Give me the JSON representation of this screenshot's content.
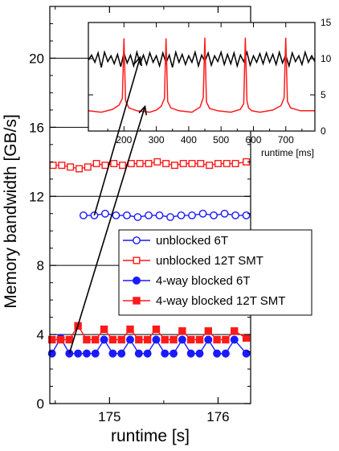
{
  "chart_data": [
    {
      "type": "line",
      "xlabel": "runtime [s]",
      "ylabel": "Memory bandwidth [GB/s]",
      "xlim": [
        174.45,
        176.3
      ],
      "ylim": [
        0,
        23
      ],
      "xticks": [
        "175",
        "176"
      ],
      "yticks": [
        "0",
        "4",
        "8",
        "12",
        "16",
        "20"
      ],
      "grid": "horizontal",
      "legend_position": "center-right",
      "colors": {
        "blocked_blue": "#1a1aff",
        "smt_red": "#ff1a1a"
      },
      "series": [
        {
          "name": "unblocked 6T",
          "marker": "open-circle",
          "x": [
            174.76,
            174.86,
            174.96,
            175.06,
            175.16,
            175.26,
            175.36,
            175.46,
            175.56,
            175.66,
            175.76,
            175.86,
            175.96,
            176.06,
            176.16,
            176.26
          ],
          "y": [
            10.9,
            10.9,
            11.0,
            10.9,
            10.9,
            10.8,
            10.9,
            10.9,
            10.8,
            10.9,
            10.9,
            11.0,
            10.9,
            11.0,
            10.9,
            10.9
          ]
        },
        {
          "name": "unblocked 12T SMT",
          "marker": "open-square",
          "x": [
            174.48,
            174.56,
            174.64,
            174.72,
            174.8,
            174.88,
            174.96,
            175.04,
            175.12,
            175.2,
            175.28,
            175.36,
            175.44,
            175.52,
            175.6,
            175.68,
            175.76,
            175.84,
            175.92,
            176.0,
            176.08,
            176.16,
            176.26
          ],
          "y": [
            13.8,
            13.8,
            13.7,
            13.6,
            13.7,
            13.9,
            13.8,
            13.9,
            13.8,
            13.9,
            13.9,
            13.9,
            14.0,
            13.9,
            13.8,
            13.9,
            13.9,
            13.9,
            13.8,
            13.9,
            13.9,
            13.9,
            14.0
          ]
        },
        {
          "name": "4-way blocked 6T",
          "marker": "filled-circle",
          "x": [
            174.47,
            174.55,
            174.63,
            174.71,
            174.79,
            174.87,
            174.95,
            175.03,
            175.11,
            175.19,
            175.27,
            175.35,
            175.43,
            175.51,
            175.59,
            175.67,
            175.75,
            175.83,
            175.91,
            175.99,
            176.07,
            176.15,
            176.26
          ],
          "y": [
            2.9,
            3.8,
            2.9,
            2.9,
            2.9,
            2.9,
            3.7,
            2.9,
            2.9,
            3.7,
            2.9,
            2.9,
            3.7,
            2.9,
            2.9,
            3.7,
            2.9,
            2.9,
            3.7,
            2.9,
            2.9,
            3.7,
            2.9
          ]
        },
        {
          "name": "4-way blocked 12T SMT",
          "marker": "filled-square",
          "x": [
            174.47,
            174.55,
            174.63,
            174.71,
            174.79,
            174.87,
            174.95,
            175.03,
            175.11,
            175.19,
            175.27,
            175.35,
            175.43,
            175.51,
            175.59,
            175.67,
            175.75,
            175.83,
            175.91,
            175.99,
            176.07,
            176.15,
            176.26
          ],
          "y": [
            3.7,
            3.7,
            3.7,
            4.5,
            3.7,
            3.7,
            4.3,
            3.7,
            3.7,
            4.3,
            3.7,
            3.7,
            4.3,
            3.7,
            3.7,
            4.2,
            3.7,
            3.7,
            4.2,
            3.7,
            3.7,
            4.2,
            3.8
          ]
        }
      ]
    },
    {
      "type": "line",
      "inset": true,
      "xlabel": "runtime [ms]",
      "ylabel": "",
      "xlim": [
        90,
        790
      ],
      "ylim": [
        0,
        15
      ],
      "xticks": [
        "200",
        "300",
        "400",
        "500",
        "600",
        "700"
      ],
      "yticks": [
        "0",
        "5",
        "10",
        "15"
      ],
      "series": [
        {
          "color": "#000000",
          "x": [
            90,
            100,
            110,
            120,
            130,
            140,
            150,
            160,
            170,
            180,
            190,
            200,
            210,
            220,
            230,
            240,
            250,
            260,
            270,
            280,
            290,
            300,
            310,
            320,
            330,
            340,
            350,
            360,
            370,
            380,
            390,
            400,
            410,
            420,
            430,
            440,
            450,
            460,
            470,
            480,
            490,
            500,
            510,
            520,
            530,
            540,
            550,
            560,
            570,
            580,
            590,
            600,
            610,
            620,
            630,
            640,
            650,
            660,
            670,
            680,
            690,
            700,
            710,
            720,
            730,
            740,
            750,
            760,
            770,
            780,
            790
          ],
          "y": [
            9.8,
            10.5,
            9.5,
            10.8,
            8.8,
            10.9,
            9.6,
            10.4,
            9.3,
            10.6,
            8.9,
            10.8,
            9.4,
            10.5,
            9.0,
            10.9,
            9.3,
            10.5,
            9.2,
            10.8,
            9.5,
            10.4,
            9.0,
            10.8,
            9.4,
            10.5,
            8.8,
            10.9,
            9.5,
            10.6,
            9.2,
            10.4,
            9.5,
            10.9,
            9.0,
            10.5,
            9.6,
            10.8,
            9.1,
            10.4,
            9.6,
            10.9,
            9.2,
            10.6,
            9.3,
            10.8,
            9.0,
            10.5,
            9.6,
            10.9,
            9.1,
            10.4,
            9.5,
            10.7,
            9.3,
            10.8,
            9.5,
            10.6,
            9.2,
            10.9,
            9.4,
            10.5,
            9.0,
            10.8,
            9.6,
            10.4,
            9.2,
            10.9,
            9.5,
            10.4,
            9.6
          ]
        },
        {
          "color": "#ff1a1a",
          "x": [
            90,
            130,
            165,
            185,
            195,
            200,
            205,
            215,
            240,
            280,
            300,
            315,
            325,
            330,
            335,
            345,
            370,
            410,
            435,
            445,
            450,
            455,
            465,
            490,
            530,
            560,
            570,
            575,
            580,
            585,
            595,
            620,
            660,
            685,
            695,
            700,
            705,
            715,
            745,
            790
          ],
          "y": [
            2.8,
            2.6,
            3.0,
            3.6,
            4.5,
            12.8,
            4.2,
            3.2,
            2.8,
            2.6,
            2.9,
            3.4,
            4.5,
            12.8,
            4.1,
            3.2,
            2.8,
            2.6,
            3.3,
            4.6,
            12.9,
            4.0,
            3.1,
            2.8,
            2.6,
            3.0,
            3.8,
            12.9,
            4.2,
            3.2,
            2.8,
            2.6,
            2.9,
            3.5,
            4.6,
            12.9,
            4.1,
            3.2,
            2.8,
            2.8
          ]
        }
      ]
    }
  ]
}
